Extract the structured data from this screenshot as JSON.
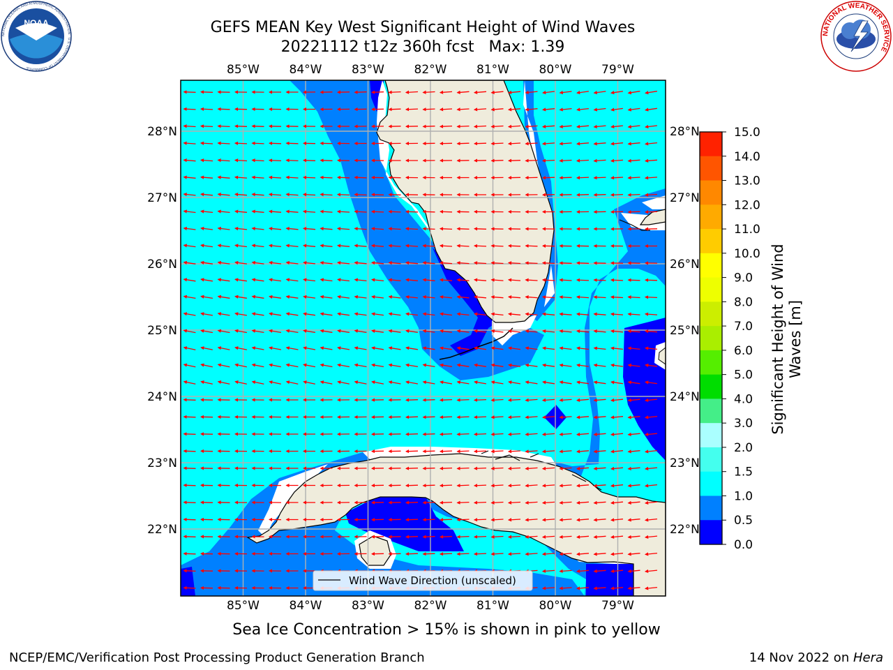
{
  "title": "GEFS MEAN Key West Significant Height of Wind Waves",
  "subtitle": "20221112 t12z 360h fcst   Max: 1.39",
  "map": {
    "region": "Key West",
    "lon_labels": [
      "85°W",
      "84°W",
      "83°W",
      "82°W",
      "81°W",
      "80°W",
      "79°W"
    ],
    "lat_labels": [
      "28°N",
      "27°N",
      "26°N",
      "25°N",
      "24°N",
      "23°N",
      "22°N"
    ],
    "legend_label": "Wind Wave Direction (unscaled)",
    "land_color": "#efecdc",
    "grid_color": "#b0b0b0",
    "arrow_color": "#ff0000"
  },
  "colorbar": {
    "title": "Significant Height of Wind Waves [m]",
    "title_lines": [
      "Significant Height of Wind",
      "Waves [m]"
    ],
    "ticks": [
      "15.0",
      "14.0",
      "13.0",
      "12.0",
      "11.0",
      "10.0",
      "9.0",
      "8.0",
      "7.0",
      "6.0",
      "5.0",
      "4.0",
      "3.0",
      "2.0",
      "1.5",
      "1.0",
      "0.5",
      "0.0"
    ],
    "bins": [
      {
        "from": 0.0,
        "to": 0.5,
        "color": "#0000ff"
      },
      {
        "from": 0.5,
        "to": 1.0,
        "color": "#0080ff"
      },
      {
        "from": 1.0,
        "to": 1.5,
        "color": "#00ffff"
      },
      {
        "from": 1.5,
        "to": 2.0,
        "color": "#44ffee"
      },
      {
        "from": 2.0,
        "to": 3.0,
        "color": "#aaffff"
      },
      {
        "from": 3.0,
        "to": 4.0,
        "color": "#44ee88"
      },
      {
        "from": 4.0,
        "to": 5.0,
        "color": "#00dd00"
      },
      {
        "from": 5.0,
        "to": 6.0,
        "color": "#55ee00"
      },
      {
        "from": 6.0,
        "to": 7.0,
        "color": "#aaee00"
      },
      {
        "from": 7.0,
        "to": 8.0,
        "color": "#ccee00"
      },
      {
        "from": 8.0,
        "to": 9.0,
        "color": "#eeff00"
      },
      {
        "from": 9.0,
        "to": 10.0,
        "color": "#ffff00"
      },
      {
        "from": 10.0,
        "to": 11.0,
        "color": "#ffcc00"
      },
      {
        "from": 11.0,
        "to": 12.0,
        "color": "#ffaa00"
      },
      {
        "from": 12.0,
        "to": 13.0,
        "color": "#ff8800"
      },
      {
        "from": 13.0,
        "to": 14.0,
        "color": "#ff5500"
      },
      {
        "from": 14.0,
        "to": 15.0,
        "color": "#ff2200"
      },
      {
        "from": 15.0,
        "to": 15.0,
        "color": "#ff0000"
      }
    ]
  },
  "note": "Sea Ice Concentration > 15% is shown in pink to yellow",
  "footer": {
    "left": "NCEP/EMC/Verification Post Processing Product Generation Branch",
    "date": "14 Nov 2022 on ",
    "host": "Hera"
  },
  "logos": {
    "left_text": "NOAA",
    "left_ring": "NATIONAL OCEANIC AND ATMOSPHERIC ADMINISTRATION · U.S. DEPARTMENT OF COMMERCE",
    "right_ring": "NATIONAL WEATHER SERVICE"
  }
}
